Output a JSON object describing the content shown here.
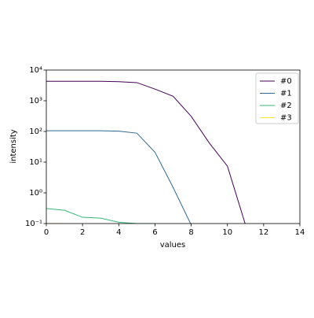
{
  "chart_data": {
    "type": "line",
    "xlabel": "values",
    "ylabel": "intensity",
    "x": [
      0,
      1,
      2,
      3,
      4,
      5,
      6,
      7,
      8,
      9,
      10,
      11
    ],
    "series": [
      {
        "name": "#0",
        "color": "#440154",
        "values": [
          4300,
          4300,
          4300,
          4300,
          4200,
          3900,
          2400,
          1400,
          310,
          42,
          7.4,
          0.09
        ]
      },
      {
        "name": "#1",
        "color": "#31688e",
        "values": [
          105,
          105,
          105,
          105,
          102,
          88,
          21,
          1.5,
          0.09,
          null,
          null,
          null
        ]
      },
      {
        "name": "#2",
        "color": "#35b779",
        "values": [
          0.31,
          0.27,
          0.16,
          0.15,
          0.11,
          0.1,
          0.1,
          null,
          null,
          null,
          null,
          null
        ]
      },
      {
        "name": "#3",
        "color": "#fde725",
        "values": [
          0.1,
          0.1,
          null,
          null,
          null,
          null,
          null,
          null,
          null,
          null,
          null,
          null
        ]
      }
    ],
    "xlim": [
      0,
      14
    ],
    "xticks": [
      0,
      2,
      4,
      6,
      8,
      10,
      12,
      14
    ],
    "ylim": [
      0.1,
      10000
    ],
    "log_y": true,
    "yticks": [
      {
        "value": 0.1,
        "label": "10⁻¹"
      },
      {
        "value": 1,
        "label": "10⁰"
      },
      {
        "value": 10,
        "label": "10¹"
      },
      {
        "value": 100,
        "label": "10²"
      },
      {
        "value": 1000,
        "label": "10³"
      },
      {
        "value": 10000,
        "label": "10⁴"
      }
    ],
    "legend": "upper right"
  }
}
